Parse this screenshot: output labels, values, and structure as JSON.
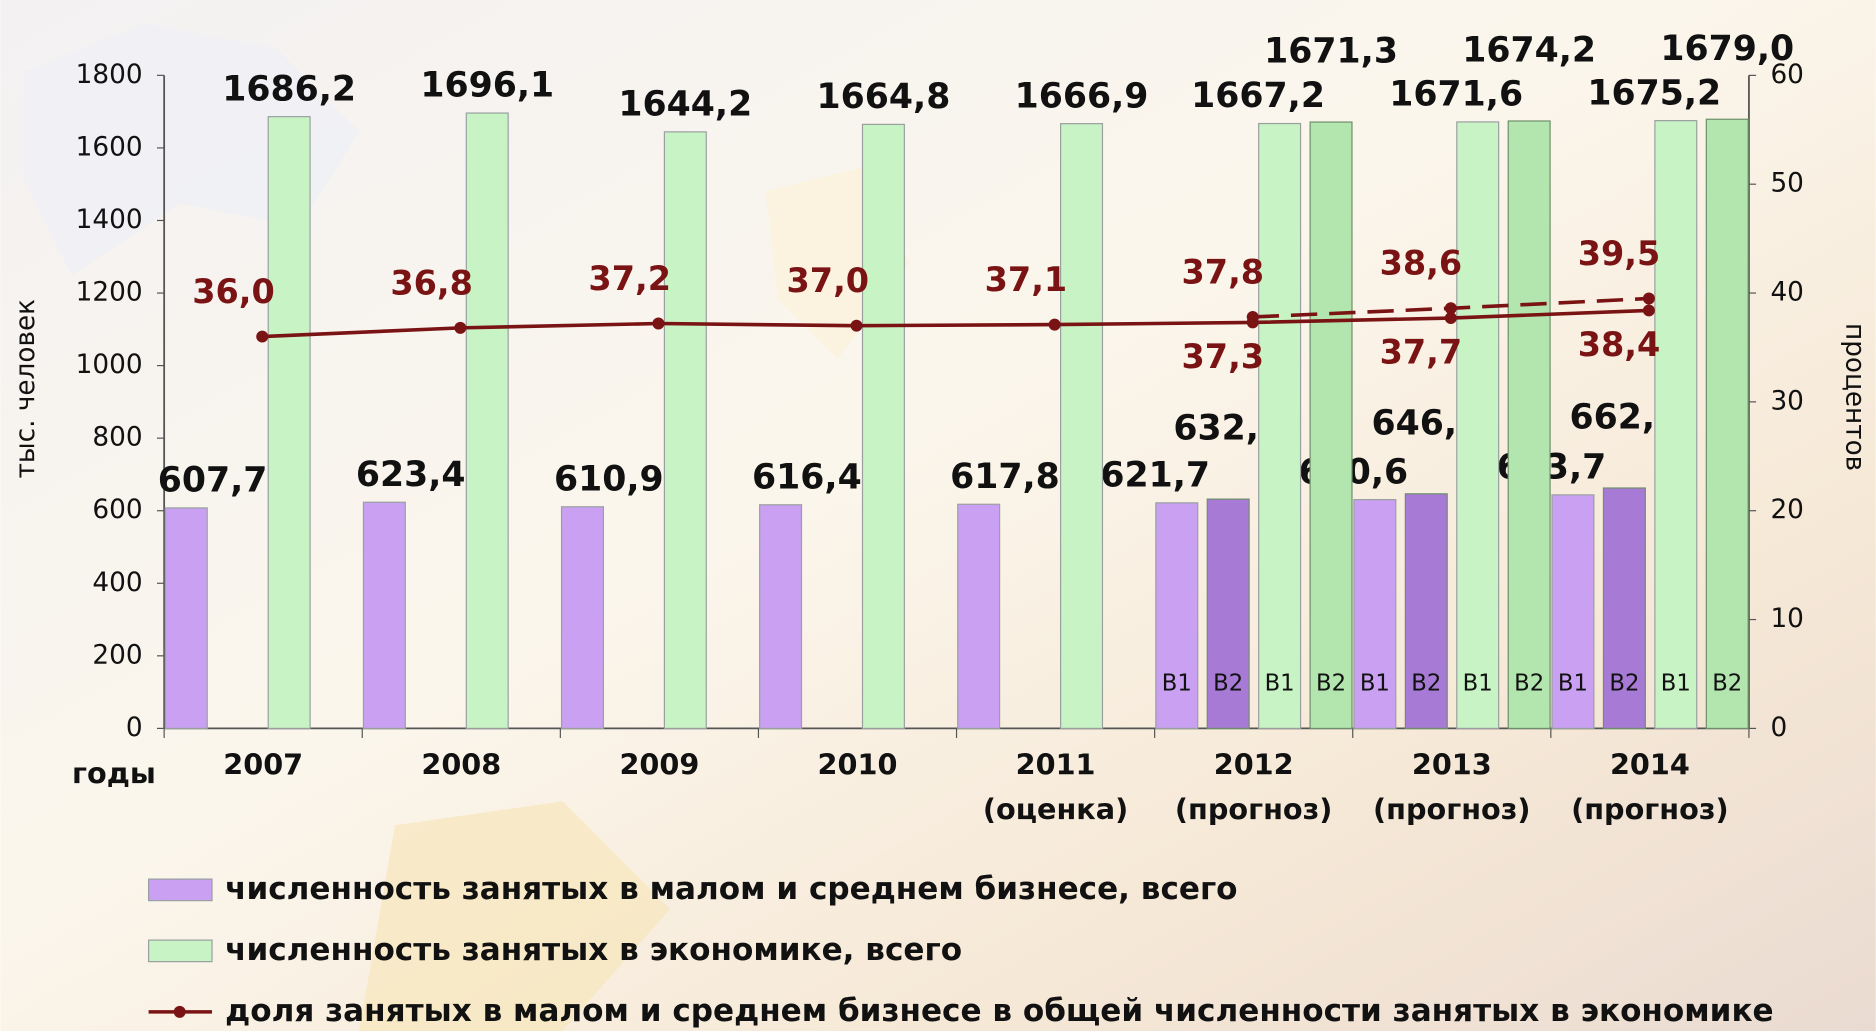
{
  "chart_data": {
    "type": "combo",
    "y_label": "тыс. человек",
    "y2_label": "процентов",
    "x_label": "годы",
    "categories": [
      "2007",
      "2008",
      "2009",
      "2010",
      "2011",
      "2012",
      "2013",
      "2014"
    ],
    "category_notes": [
      null,
      null,
      null,
      null,
      "(оценка)",
      "(прогноз)",
      "(прогноз)",
      "(прогноз)"
    ],
    "ylim": [
      0,
      1800
    ],
    "yticks": [
      0,
      200,
      400,
      600,
      800,
      1000,
      1200,
      1400,
      1600,
      1800
    ],
    "y2lim": [
      0,
      60
    ],
    "y2ticks": [
      0,
      10,
      20,
      30,
      40,
      50,
      60
    ],
    "series": [
      {
        "name": "численность занятых в малом и среднем бизнесе, всего",
        "type": "bar",
        "axis": "y",
        "color": "#c9a0f2",
        "variants": [
          {
            "label": "В1",
            "color": "#c9a0f2",
            "values": [
              607.7,
              623.4,
              610.9,
              616.4,
              617.8,
              621.7,
              630.6,
              643.7
            ],
            "value_labels": [
              "607,7",
              "623,4",
              "610,9",
              "616,4",
              "617,8",
              "621,7",
              "630,6",
              "643,7"
            ]
          },
          {
            "label": "В2",
            "color": "#a77ad6",
            "values": [
              null,
              null,
              null,
              null,
              null,
              632.0,
              646.6,
              662.6
            ],
            "value_labels": [
              null,
              null,
              null,
              null,
              null,
              "632,0",
              "646,6",
              "662,6"
            ]
          }
        ]
      },
      {
        "name": "численность занятых в экономике, всего",
        "type": "bar",
        "axis": "y",
        "color": "#c8f3c4",
        "variants": [
          {
            "label": "В1",
            "color": "#c8f3c4",
            "values": [
              1686.2,
              1696.1,
              1644.2,
              1664.8,
              1666.9,
              1667.2,
              1671.6,
              1675.2
            ],
            "value_labels": [
              "1686,2",
              "1696,1",
              "1644,2",
              "1664,8",
              "1666,9",
              "1667,2",
              "1671,6",
              "1675,2"
            ]
          },
          {
            "label": "В2",
            "color": "#b3e6ae",
            "values": [
              null,
              null,
              null,
              null,
              null,
              1671.3,
              1674.2,
              1679.0
            ],
            "value_labels": [
              null,
              null,
              null,
              null,
              null,
              "1671,3",
              "1674,2",
              "1679,0"
            ]
          }
        ]
      },
      {
        "name": "доля занятых в малом и среднем бизнесе в общей численности занятых в экономике",
        "type": "line",
        "axis": "y2",
        "color": "#7a1414",
        "variants": [
          {
            "label": "В1",
            "dashed": false,
            "values": [
              36.0,
              36.8,
              37.2,
              37.0,
              37.1,
              37.3,
              37.7,
              38.4
            ],
            "value_labels": [
              "36,0",
              "36,8",
              "37,2",
              "37,0",
              "37,1",
              "37,3",
              "37,7",
              "38,4"
            ]
          },
          {
            "label": "В2",
            "dashed": true,
            "values": [
              null,
              null,
              null,
              null,
              null,
              37.8,
              38.6,
              39.5
            ],
            "value_labels": [
              null,
              null,
              null,
              null,
              null,
              "37,8",
              "38,6",
              "39,5"
            ]
          }
        ]
      }
    ]
  }
}
